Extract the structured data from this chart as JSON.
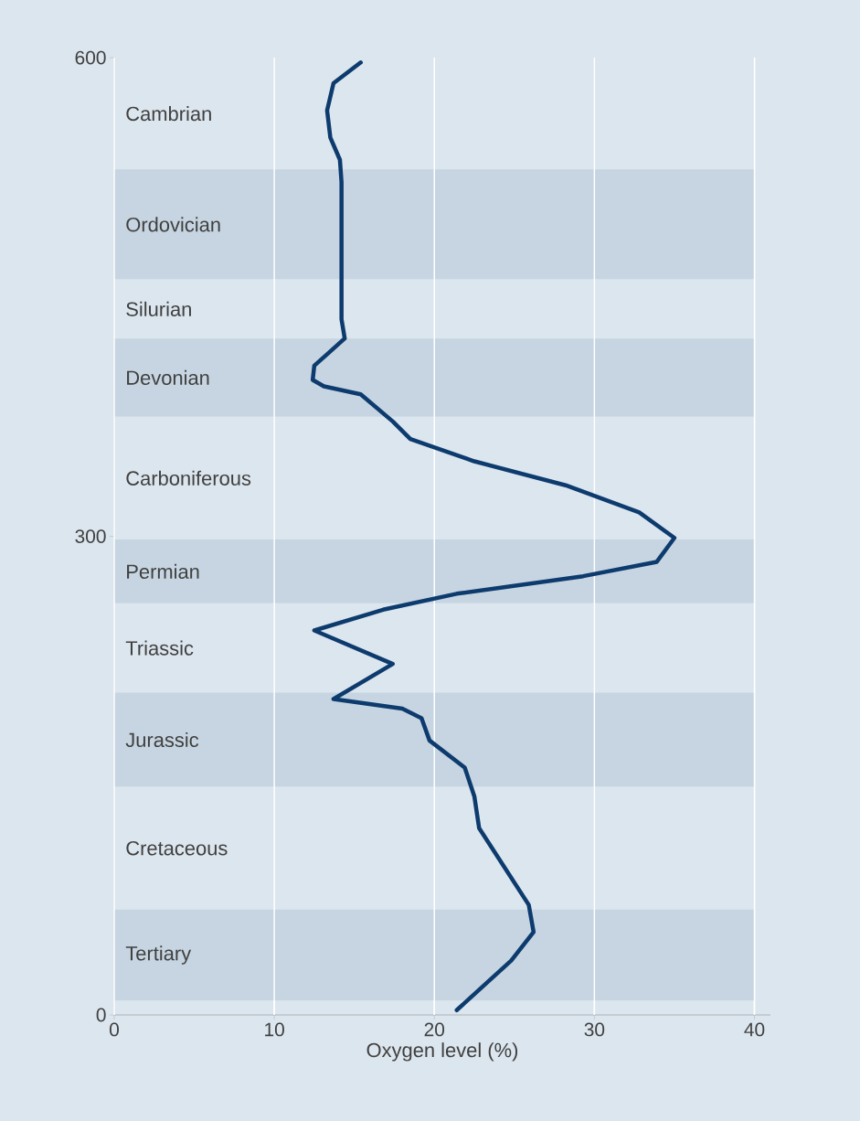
{
  "chart_data": {
    "type": "line",
    "xlabel": "Oxygen level (%)",
    "xlim": [
      0,
      41
    ],
    "ylim": [
      0,
      600
    ],
    "xticks": [
      0,
      10,
      20,
      30,
      40
    ],
    "yticks": [
      0,
      300,
      600
    ],
    "grid": "x",
    "series": [
      {
        "color": "#0d3b6e",
        "x": [
          15.4,
          13.7,
          13.3,
          13.5,
          14.1,
          14.2,
          14.2,
          14.4,
          13.4,
          12.5,
          12.4,
          13.1,
          15.4,
          17.4,
          18.5,
          22.5,
          28.2,
          32.8,
          35.0,
          33.9,
          29.3,
          21.4,
          16.8,
          12.5,
          17.4,
          13.7,
          18.0,
          19.2,
          19.7,
          21.9,
          22.5,
          22.8,
          23.9,
          25.9,
          26.2,
          24.8,
          21.4
        ],
        "values": [
          597,
          584,
          567,
          550,
          536,
          522,
          436,
          424,
          415,
          407,
          398,
          394,
          389,
          372,
          361,
          347,
          332,
          315,
          299,
          284,
          275,
          264,
          254,
          241,
          220,
          198,
          192,
          186,
          172,
          155,
          137,
          117,
          100,
          69,
          52,
          34,
          3
        ]
      }
    ],
    "bands": [
      {
        "axis": "y",
        "from": 530,
        "to": 600,
        "label": "Cambrian",
        "color": "#dce6ee"
      },
      {
        "axis": "y",
        "from": 461,
        "to": 530,
        "label": "Ordovician",
        "color": "#c6d5e1"
      },
      {
        "axis": "y",
        "from": 424,
        "to": 461,
        "label": "Silurian",
        "color": "#dce6ee"
      },
      {
        "axis": "y",
        "from": 375,
        "to": 424,
        "label": "Devonian",
        "color": "#c6d5e1"
      },
      {
        "axis": "y",
        "from": 298,
        "to": 375,
        "label": "Carboniferous",
        "color": "#dce6ee"
      },
      {
        "axis": "y",
        "from": 258,
        "to": 298,
        "label": "Permian",
        "color": "#c6d5e1"
      },
      {
        "axis": "y",
        "from": 202,
        "to": 258,
        "label": "Triassic",
        "color": "#dce6ee"
      },
      {
        "axis": "y",
        "from": 143,
        "to": 202,
        "label": "Jurassic",
        "color": "#c6d5e1"
      },
      {
        "axis": "y",
        "from": 66,
        "to": 143,
        "label": "Cretaceous",
        "color": "#dce6ee"
      },
      {
        "axis": "y",
        "from": 9,
        "to": 66,
        "label": "Tertiary",
        "color": "#c6d5e1"
      }
    ]
  }
}
